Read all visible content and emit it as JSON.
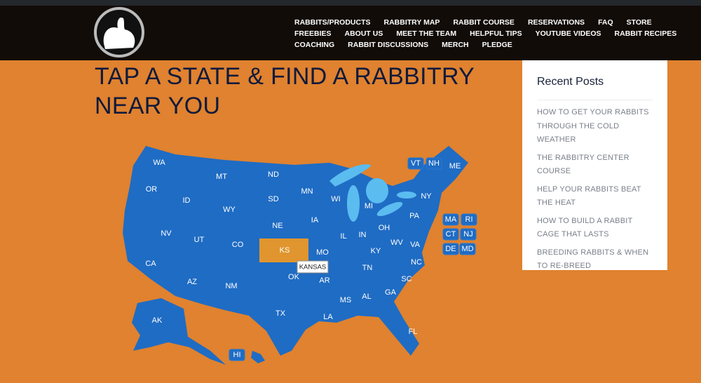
{
  "header": {
    "nav": [
      [
        "RABBITS/PRODUCTS",
        "RABBITRY MAP",
        "RABBIT COURSE",
        "RESERVATIONS",
        "FAQ",
        "STORE"
      ],
      [
        "FREEBIES",
        "ABOUT US",
        "MEET THE TEAM",
        "HELPFUL TIPS",
        "YOUTUBE VIDEOS",
        "RABBIT RECIPES"
      ],
      [
        "COACHING",
        "RABBIT DISCUSSIONS",
        "MERCH",
        "PLEDGE"
      ]
    ]
  },
  "main": {
    "title": "TAP A STATE & FIND A RABBITRY NEAR YOU",
    "map": {
      "states": [
        "WA",
        "OR",
        "ID",
        "MT",
        "WY",
        "ND",
        "SD",
        "NE",
        "CO",
        "UT",
        "NV",
        "CA",
        "AZ",
        "NM",
        "KS",
        "OK",
        "TX",
        "MN",
        "WI",
        "MI",
        "IA",
        "IL",
        "IN",
        "OH",
        "MO",
        "AR",
        "LA",
        "MS",
        "AL",
        "GA",
        "FL",
        "TN",
        "KY",
        "WV",
        "VA",
        "NC",
        "SC",
        "PA",
        "NY",
        "ME",
        "AK"
      ],
      "boxed_states": [
        "VT",
        "NH",
        "MA",
        "RI",
        "CT",
        "NJ",
        "DE",
        "MD",
        "HI"
      ],
      "tooltip": "KANSAS"
    }
  },
  "sidebar": {
    "title": "Recent Posts",
    "posts": [
      "HOW TO GET YOUR RABBITS THROUGH THE COLD WEATHER",
      "THE RABBITRY CENTER COURSE",
      "HELP YOUR RABBITS BEAT THE HEAT",
      "HOW TO BUILD A RABBIT CAGE THAT LASTS",
      "BREEDING RABBITS & WHEN TO RE-BREED"
    ]
  }
}
